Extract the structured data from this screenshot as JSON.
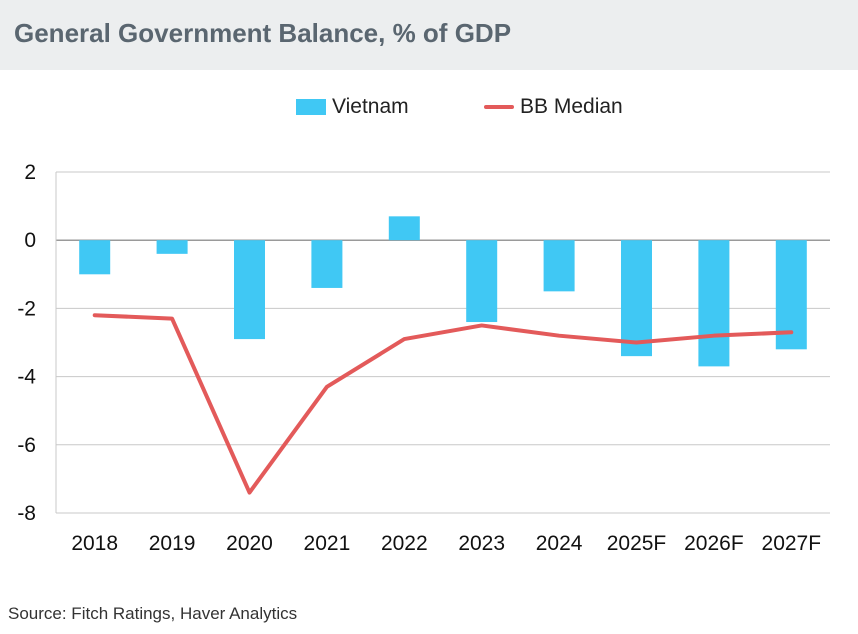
{
  "title": "General Government Balance, % of GDP",
  "source": "Source: Fitch Ratings, Haver Analytics",
  "colors": {
    "bar": "#40c8f4",
    "line": "#e35a5a",
    "grid": "#c8c8c8",
    "axis": "#9a9a9a"
  },
  "chart_data": {
    "type": "bar",
    "title": "General Government Balance, % of GDP",
    "categories": [
      "2018",
      "2019",
      "2020",
      "2021",
      "2022",
      "2023",
      "2024",
      "2025F",
      "2026F",
      "2027F"
    ],
    "series": [
      {
        "name": "Vietnam",
        "kind": "bar",
        "values": [
          -1.0,
          -0.4,
          -2.9,
          -1.4,
          0.7,
          -2.4,
          -1.5,
          -3.4,
          -3.7,
          -3.2
        ]
      },
      {
        "name": "BB Median",
        "kind": "line",
        "values": [
          -2.2,
          -2.3,
          -7.4,
          -4.3,
          -2.9,
          -2.5,
          -2.8,
          -3.0,
          -2.8,
          -2.7
        ]
      }
    ],
    "ylim": [
      -8,
      2
    ],
    "yticks": [
      2,
      0,
      -2,
      -4,
      -6,
      -8
    ],
    "xlabel": "",
    "ylabel": "",
    "legend": "top-center",
    "grid": true
  }
}
